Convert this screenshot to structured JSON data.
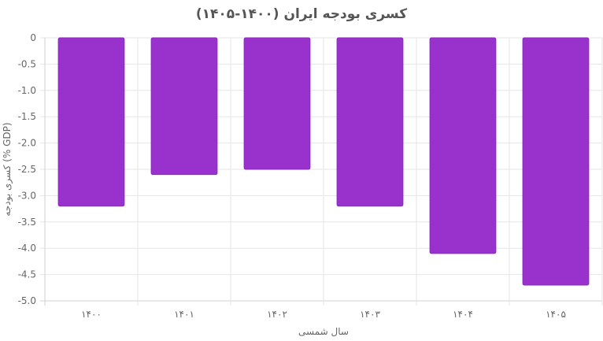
{
  "chart_data": {
    "type": "bar",
    "title": "کسری بودجه ایران (۱۴۰۰-۱۴۰۵)",
    "xlabel": "سال شمسی",
    "ylabel": "کسری بودجه (% GDP)",
    "categories": [
      "۱۴۰۰",
      "۱۴۰۱",
      "۱۴۰۲",
      "۱۴۰۳",
      "۱۴۰۴",
      "۱۴۰۵"
    ],
    "series": [
      {
        "values": [
          -3.2,
          -2.6,
          -2.5,
          -3.2,
          -4.1,
          -4.7
        ]
      }
    ],
    "ylim": [
      -5.0,
      0
    ],
    "yticks": [
      "0",
      "-0.5",
      "-1.0",
      "-1.5",
      "-2.0",
      "-2.5",
      "-3.0",
      "-3.5",
      "-4.0",
      "-4.5",
      "-5.0"
    ],
    "grid": true,
    "colors": {
      "bar": "#9932cc",
      "bar_border": "#8a2bbf"
    }
  }
}
